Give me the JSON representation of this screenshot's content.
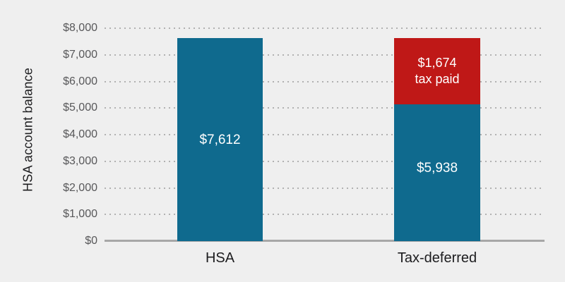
{
  "chart_data": {
    "type": "bar",
    "stacked": true,
    "title": "",
    "xlabel": "",
    "ylabel": "HSA account balance",
    "categories": [
      "HSA",
      "Tax-deferred"
    ],
    "series": [
      {
        "name": "account balance",
        "color": "#0f6a8e",
        "values": [
          7612,
          5938
        ]
      },
      {
        "name": "tax paid",
        "color": "#bf1817",
        "values": [
          0,
          1674
        ]
      }
    ],
    "bar_totals": [
      7612,
      7612
    ],
    "data_labels": {
      "HSA": [
        "$7,612"
      ],
      "Tax-deferred": [
        "$1,674 tax paid",
        "$5,938"
      ]
    },
    "ylim": [
      0,
      8000
    ],
    "y_tick_step": 1000,
    "y_tick_labels": [
      "$8,000",
      "$7,000",
      "$6,000",
      "$5,000",
      "$4,000",
      "$3,000",
      "$2,000",
      "$1,000",
      "$0"
    ],
    "grid": "horizontal dotted",
    "legend": "none"
  },
  "labels": {
    "y_axis_title": "HSA account balance",
    "x_categories": {
      "hsa": "HSA",
      "tax_deferred": "Tax-deferred"
    },
    "bar_hsa_value": "$7,612",
    "bar_tax_deferred_balance": "$5,938",
    "bar_tax_deferred_tax_line1": "$1,674",
    "bar_tax_deferred_tax_line2": "tax paid"
  },
  "colors": {
    "background": "#efefef",
    "bar_blue": "#0f6a8e",
    "bar_red": "#bf1817",
    "gridline_dots": "#b1b1b1",
    "axis_line": "#a7a7a7",
    "tick_text": "#58585a",
    "category_text": "#1d1d1f",
    "bar_label_text": "#ffffff"
  }
}
